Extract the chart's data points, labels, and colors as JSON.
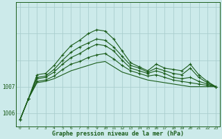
{
  "xlabel": "Graphe pression niveau de la mer (hPa)",
  "bg_color": "#cceaea",
  "grid_color": "#aacece",
  "line_color": "#1a5c1a",
  "ylim": [
    1005.5,
    1010.2
  ],
  "ytick_vals": [
    1006,
    1007
  ],
  "xtick_vals": [
    0,
    1,
    2,
    3,
    4,
    5,
    6,
    7,
    8,
    9,
    10,
    11,
    12,
    13,
    14,
    15,
    16,
    17,
    18,
    19,
    20,
    21,
    22,
    23
  ],
  "series": [
    {
      "y": [
        1005.75,
        1006.55,
        1007.15,
        1007.2,
        1007.3,
        1007.45,
        1007.6,
        1007.7,
        1007.8,
        1007.9,
        1007.95,
        1007.75,
        1007.55,
        1007.45,
        1007.35,
        1007.25,
        1007.2,
        1007.15,
        1007.1,
        1007.05,
        1007.0,
        1007.0,
        1007.0,
        1007.0
      ],
      "marker": false
    },
    {
      "y": [
        1005.75,
        1006.55,
        1007.2,
        1007.25,
        1007.4,
        1007.65,
        1007.85,
        1007.95,
        1008.1,
        1008.2,
        1008.25,
        1008.05,
        1007.8,
        1007.6,
        1007.5,
        1007.4,
        1007.45,
        1007.35,
        1007.25,
        1007.2,
        1007.15,
        1007.1,
        1007.05,
        1007.0
      ],
      "marker": true
    },
    {
      "y": [
        1005.75,
        1006.55,
        1007.3,
        1007.35,
        1007.55,
        1007.85,
        1008.1,
        1008.25,
        1008.45,
        1008.6,
        1008.55,
        1008.35,
        1008.0,
        1007.7,
        1007.6,
        1007.5,
        1007.6,
        1007.5,
        1007.35,
        1007.3,
        1007.35,
        1007.2,
        1007.1,
        1007.0
      ],
      "marker": true
    },
    {
      "y": [
        1005.75,
        1006.55,
        1007.35,
        1007.4,
        1007.65,
        1008.0,
        1008.3,
        1008.5,
        1008.65,
        1008.8,
        1008.75,
        1008.5,
        1008.15,
        1007.8,
        1007.7,
        1007.55,
        1007.7,
        1007.6,
        1007.5,
        1007.45,
        1007.7,
        1007.35,
        1007.15,
        1007.0
      ],
      "marker": true
    },
    {
      "y": [
        1005.75,
        1006.55,
        1007.45,
        1007.5,
        1007.8,
        1008.2,
        1008.55,
        1008.75,
        1009.0,
        1009.15,
        1009.1,
        1008.8,
        1008.35,
        1007.9,
        1007.75,
        1007.6,
        1007.85,
        1007.7,
        1007.65,
        1007.6,
        1007.85,
        1007.45,
        1007.2,
        1007.0
      ],
      "marker": true
    }
  ]
}
